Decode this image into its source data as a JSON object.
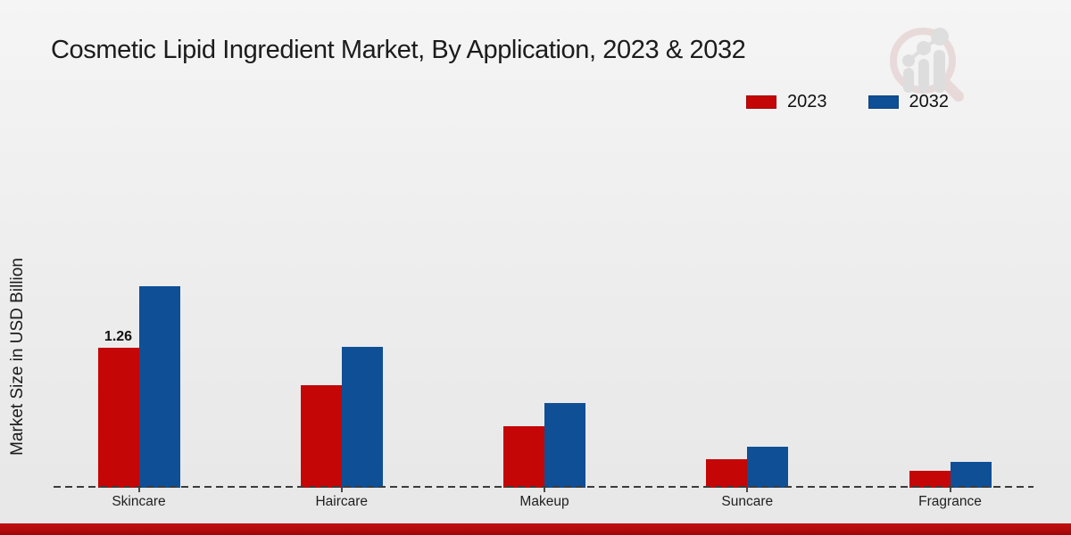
{
  "title": "Cosmetic Lipid Ingredient Market, By Application, 2023 & 2032",
  "y_axis": {
    "label": "Market Size in USD Billion"
  },
  "legend": {
    "items": [
      {
        "label": "2023",
        "color": "#c40606"
      },
      {
        "label": "2032",
        "color": "#0f4f96"
      }
    ]
  },
  "watermark_icon": "magnifier-bar-chart-logo",
  "footer": {
    "accent_color": "#b20a0a"
  },
  "chart_data": {
    "type": "bar",
    "title": "Cosmetic Lipid Ingredient Market, By Application, 2023 & 2032",
    "categories": [
      "Skincare",
      "Haircare",
      "Makeup",
      "Suncare",
      "Fragrance"
    ],
    "series": [
      {
        "name": "2023",
        "color": "#c40606",
        "values": [
          1.26,
          0.92,
          0.55,
          0.26,
          0.15
        ]
      },
      {
        "name": "2032",
        "color": "#0f4f96",
        "values": [
          1.81,
          1.27,
          0.76,
          0.37,
          0.23
        ]
      }
    ],
    "xlabel": "",
    "ylabel": "Market Size in USD Billion",
    "ylim": [
      0,
      2.2
    ],
    "grid": false,
    "y_axis_ticks_visible": false,
    "legend_position": "top-right",
    "baseline_style": "dashed",
    "annotations": [
      {
        "series": "2023",
        "category": "Skincare",
        "text": "1.26"
      }
    ]
  }
}
